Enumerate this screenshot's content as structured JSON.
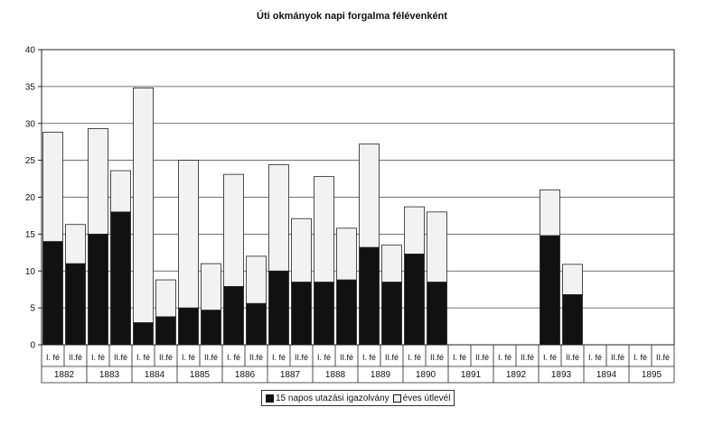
{
  "chart_data": {
    "type": "bar",
    "stacked": true,
    "title": "Úti okmányok napi forgalma félévenként",
    "xlabel": "",
    "ylabel": "",
    "ylim": [
      0,
      40
    ],
    "yticks": [
      0,
      5,
      10,
      15,
      20,
      25,
      30,
      35,
      40
    ],
    "grid": true,
    "legend_position": "bottom",
    "categories": [
      "I. fé",
      "II.fé",
      "I. fé",
      "II.fé",
      "I. fé",
      "II.fé",
      "I. fé",
      "II.fé",
      "I. fé",
      "II.fé",
      "I. fé",
      "II.fé",
      "I. fé",
      "II.fé",
      "I. fé",
      "II.fé",
      "I. fé",
      "II.fé",
      "I. fé",
      "II.fé",
      "I. fé",
      "II.fé",
      "I. fé",
      "II.fé",
      "I. fé",
      "II.fé",
      "I. fé",
      "II.fé"
    ],
    "groups": [
      "1882",
      "1883",
      "1884",
      "1885",
      "1886",
      "1887",
      "1888",
      "1889",
      "1890",
      "1891",
      "1892",
      "1893",
      "1894",
      "1895"
    ],
    "series": [
      {
        "name": "15 napos utazási igazolvány",
        "color": "#111111",
        "values": [
          14,
          11,
          15,
          18,
          3,
          3.8,
          5,
          4.7,
          7.9,
          5.6,
          10,
          8.5,
          8.5,
          8.8,
          13.2,
          8.5,
          12.3,
          8.5,
          0,
          0,
          0,
          0,
          14.8,
          6.8,
          0,
          0,
          0,
          0
        ]
      },
      {
        "name": "éves útlevél",
        "color": "#f2f2f2",
        "values": [
          14.8,
          5.3,
          14.3,
          5.6,
          31.8,
          5,
          20,
          6.3,
          15.2,
          6.4,
          14.4,
          8.6,
          14.3,
          7,
          14,
          5,
          6.4,
          9.5,
          0,
          0,
          0,
          0,
          6.2,
          4.1,
          0,
          0,
          0,
          0
        ]
      }
    ]
  }
}
